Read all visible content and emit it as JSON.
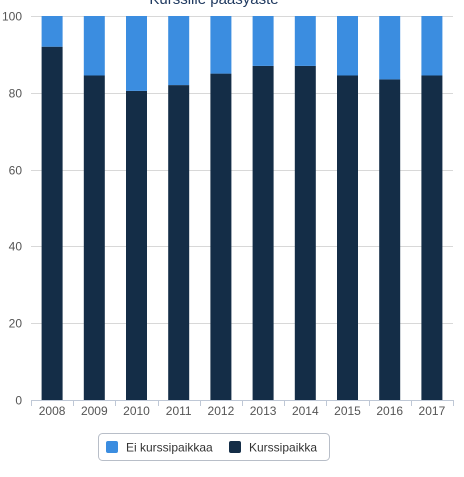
{
  "chart_data": {
    "type": "bar",
    "stacked": true,
    "title": "Kurssille pääsyaste",
    "categories": [
      "2008",
      "2009",
      "2010",
      "2011",
      "2012",
      "2013",
      "2014",
      "2015",
      "2016",
      "2017"
    ],
    "series": [
      {
        "name": "Kurssipaikka",
        "color": "#142d47",
        "values": [
          92,
          84.5,
          80.5,
          82,
          85,
          87,
          87,
          84.5,
          83.5,
          84.5
        ]
      },
      {
        "name": "Ei kurssipaikkaa",
        "color": "#3b8de0",
        "values": [
          8,
          15.5,
          19.5,
          18,
          15,
          13,
          13,
          15.5,
          16.5,
          15.5
        ]
      }
    ],
    "legend_order": [
      "Ei kurssipaikkaa",
      "Kurssipaikka"
    ],
    "yticks": [
      "0",
      "20",
      "40",
      "60",
      "80",
      "100"
    ],
    "ylim": [
      0,
      100
    ],
    "grid": true,
    "legend_position": "bottom-center"
  }
}
